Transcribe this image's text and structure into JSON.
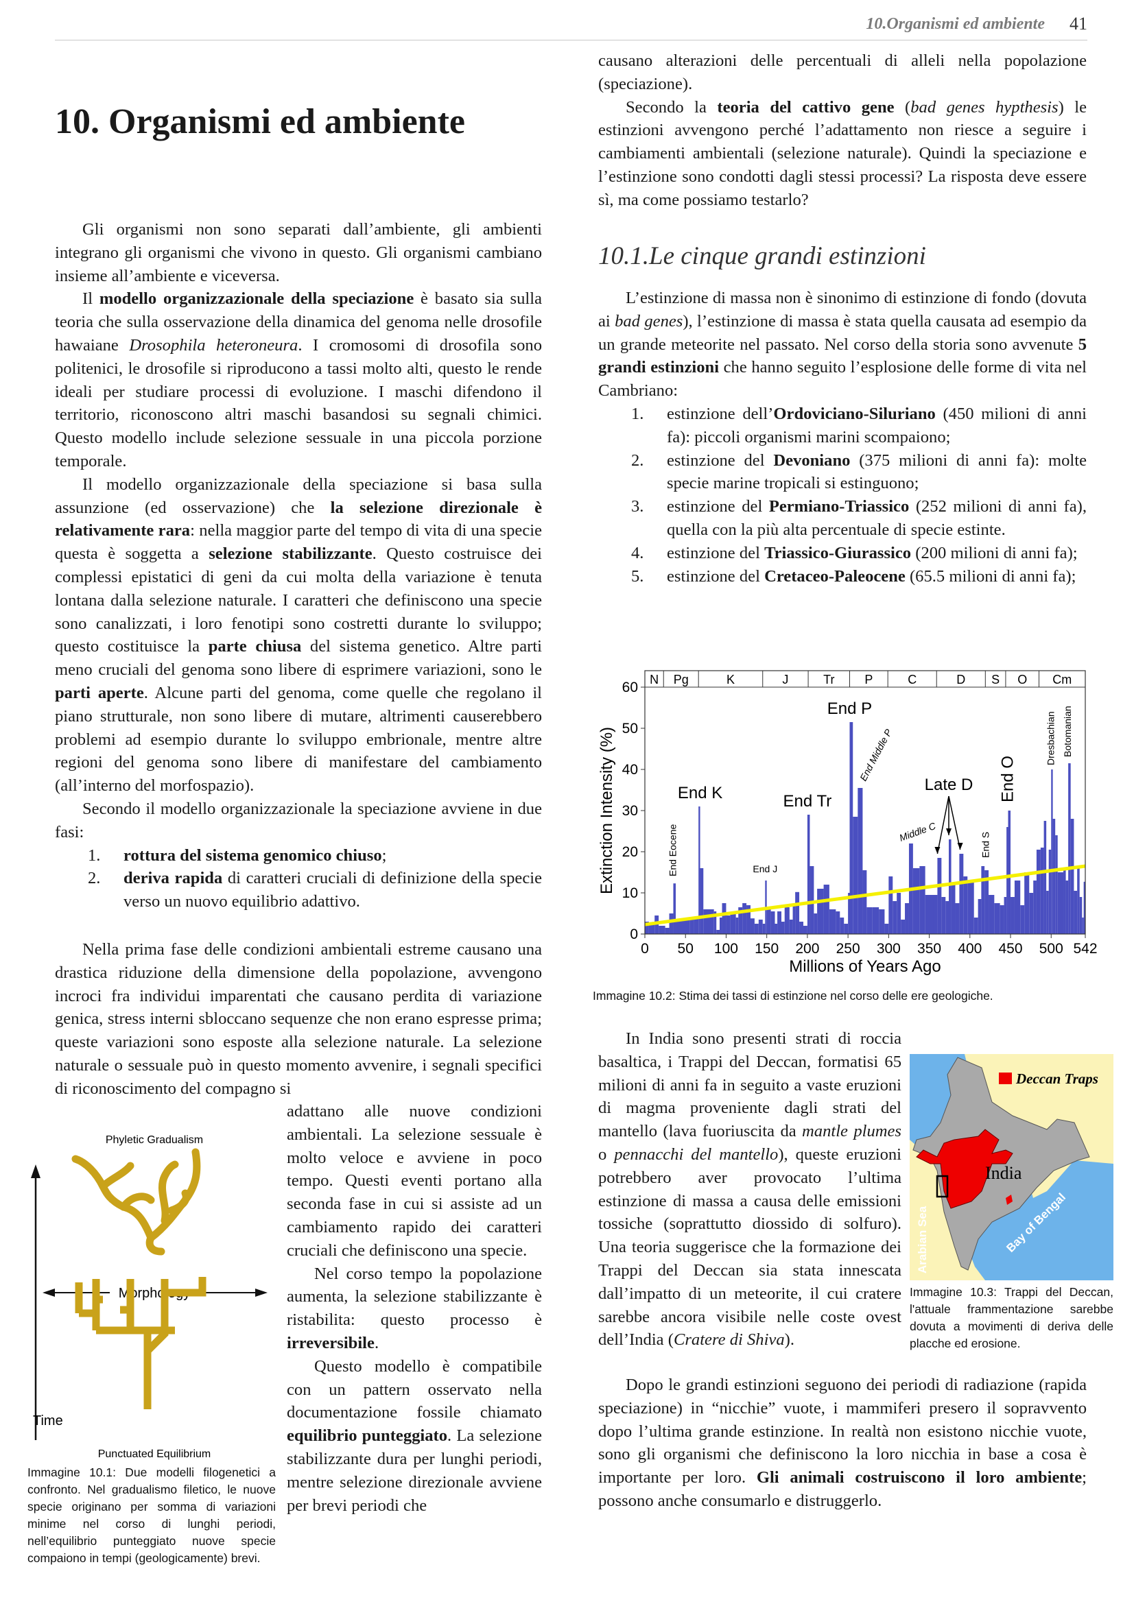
{
  "header": {
    "running_title": "10.Organismi ed ambiente",
    "page_number": "41"
  },
  "title": "10. Organismi ed ambiente",
  "left": {
    "p1": [
      "Gli organismi non sono separati dall’ambiente, gli ambienti integrano gli organismi che vivono in questo. Gli organismi cambiano insieme all’ambiente e viceversa."
    ],
    "p2": [
      "Il ",
      {
        "b": "modello organizzazionale della speciazione"
      },
      " è basato sia sulla teoria che sulla osservazione della dinamica del genoma nelle drosofile hawaiane ",
      {
        "i": "Drosophila heteroneura"
      },
      ". I cromosomi di drosofila sono politenici,  le drosofile si riproducono a tassi molto alti, questo le rende ideali per studiare processi di evoluzione. I maschi difendono il territorio, riconoscono altri maschi basandosi su segnali chimici. Questo modello include selezione sessuale in una piccola porzione temporale."
    ],
    "p3": [
      "Il modello organizzazionale della speciazione si basa sulla assunzione (ed osservazione) che ",
      {
        "b": "la selezione direzionale è relativamente rara"
      },
      ": nella maggior parte del tempo di vita di una specie questa è soggetta a ",
      {
        "b": "selezione stabilizzante"
      },
      ". Questo costruisce dei complessi epistatici di geni da cui molta della variazione è tenuta lontana dalla selezione naturale. I caratteri che definiscono una specie sono canalizzati, i loro fenotipi sono costretti durante lo sviluppo; questo costituisce la ",
      {
        "b": "parte chiusa"
      },
      " del sistema genetico. Altre parti meno cruciali del genoma sono libere di esprimere variazioni, sono le ",
      {
        "b": "parti aperte"
      },
      ". Alcune parti del genoma, come quelle che regolano il piano strutturale, non sono libere di mutare, altrimenti causerebbero problemi ad esempio durante lo sviluppo embrionale, mentre altre regioni del genoma sono libere di manifestare del cambiamento (all’interno del morfospazio)."
    ],
    "p4": [
      "Secondo il modello organizzazionale la speciazione avviene in due fasi:"
    ],
    "list": [
      {
        "num": "1.",
        "runs": [
          {
            "b": "rottura del sistema genomico chiuso"
          },
          ";"
        ]
      },
      {
        "num": "2.",
        "runs": [
          {
            "b": "deriva rapida"
          },
          " di caratteri cruciali di definizione della specie verso un nuovo equilibrio adattivo."
        ]
      }
    ],
    "p5": [
      "Nella prima fase delle condizioni ambientali estreme causano una drastica riduzione della dimensione della popolazione, avvengono incroci fra individui imparentati che causano perdita di variazione genica, stress interni sbloccano sequenze che non erano espresse prima; queste variazioni sono esposte alla selezione naturale. La selezione naturale o sessuale può in questo momento avvenire, i segnali specifici di riconoscimento del compagno si"
    ],
    "p5_cont": [
      "adattano alle nuove condizioni ambientali. La selezione sessuale è molto veloce e avviene in poco tempo. Questi eventi portano alla seconda fase in cui si assiste ad un cambiamento rapido dei caratteri cruciali che definiscono una specie."
    ],
    "p6": [
      "Nel corso tempo la popolazione aumenta, la selezione stabilizzante è ristabilita: questo processo è ",
      {
        "b": "irreversibile"
      },
      "."
    ],
    "p7": [
      "Questo modello è compatibile con un pattern osservato nella documentazione fossile chiamato ",
      {
        "b": "equilibrio punteggiato"
      },
      ". La selezione stabilizzante dura per lunghi periodi, mentre selezione direzionale avviene per brevi periodi che"
    ]
  },
  "figure1": {
    "top_label": "Phyletic Gradualism",
    "axis_h": "Morphology",
    "axis_v": "Time",
    "bottom_label": "Punctuated Equilibrium",
    "tree_color": "#c9a21a",
    "caption": "Immagine 10.1: Due modelli filogenetici a confronto. Nel gradualismo filetico, le nuove specie originano per somma di variazioni minime nel corso di lunghi periodi, nell’equilibrio punteggiato nuove specie compaiono in tempi (geologicamente) brevi."
  },
  "right": {
    "p1": [
      "causano alterazioni delle percentuali di alleli nella popolazione (speciazione)."
    ],
    "p2": [
      "Secondo la ",
      {
        "b": "teoria del cattivo gene"
      },
      " (",
      {
        "i": "bad genes hypthesis"
      },
      ") le estinzioni avvengono perché l’adattamento non riesce a seguire i cambiamenti ambientali (selezione naturale). Quindi la speciazione e l’estinzione sono condotti dagli stessi processi? La risposta deve essere sì, ma come possiamo testarlo?"
    ],
    "heading": "10.1.Le cinque grandi estinzioni",
    "p3": [
      "L’estinzione di massa non è sinonimo di estinzione di fondo (dovuta ai ",
      {
        "i": "bad genes"
      },
      "), l’estinzione di massa è stata quella causata ad esempio da un grande meteorite nel passato. Nel corso della storia sono avvenute ",
      {
        "b": "5 grandi estinzioni"
      },
      " che hanno seguito l’esplosione delle forme di vita nel Cambriano:"
    ],
    "list": [
      {
        "num": "1.",
        "runs": [
          "estinzione dell’",
          {
            "b": "Ordoviciano-Siluriano"
          },
          " (450 milioni di anni fa): piccoli organismi marini scompaiono;"
        ]
      },
      {
        "num": "2.",
        "runs": [
          "estinzione del ",
          {
            "b": "Devoniano"
          },
          " (375 milioni di anni fa): molte specie marine tropicali si estinguono;"
        ]
      },
      {
        "num": "3.",
        "runs": [
          "estinzione del ",
          {
            "b": "Permiano-Triassico"
          },
          " (252 milioni di anni fa), quella con la più alta percentuale di specie estinte."
        ]
      },
      {
        "num": "4.",
        "runs": [
          "estinzione del ",
          {
            "b": "Triassico-Giurassico"
          },
          " (200 milioni di anni fa);"
        ]
      },
      {
        "num": "5.",
        "runs": [
          "estinzione del ",
          {
            "b": "Cretaceo-Paleocene"
          },
          " (65.5 milioni di anni fa);"
        ]
      }
    ],
    "p4": [
      "In India sono presenti strati di roccia basaltica, i Trappi del Deccan, formatisi 65 milioni di anni fa in seguito a  vaste eruzioni di magma proveniente dagli strati del mantello (lava fuoriuscita da ",
      {
        "i": "mantle plumes"
      },
      " o ",
      {
        "i": "pennacchi del mantello"
      },
      "), queste eruzioni potrebbero aver provocato l’ultima estinzione di massa a causa delle emissioni tossiche (soprattutto diossido di solfuro). Una teoria suggerisce che la formazione dei Trappi del Deccan sia stata innescata dall’impatto di un meteorite, il cui cratere sarebbe ancora visibile nelle coste ovest dell’India (",
      {
        "i": "Cratere di Shiva"
      },
      ")."
    ],
    "p5": [
      "Dopo le grandi estinzioni seguono dei periodi di radiazione (rapida speciazione) in “nicchie” vuote, i mammiferi presero il sopravvento dopo l’ultima grande estinzione. In realtà non esistono nicchie vuote, sono gli organismi che definiscono la loro nicchia in base a cosa è importante per loro. ",
      {
        "b": "Gli animali costruiscono il loro ambiente"
      },
      "; possono anche consumarlo e distruggerlo."
    ]
  },
  "figure2": {
    "caption": "Immagine 10.2: Stima dei tassi di estinzione nel corso delle ere geologiche."
  },
  "figure3": {
    "legend": "Deccan Traps",
    "country": "India",
    "sea_west": "Arabian Sea",
    "sea_east": "Bay of Bengal",
    "colors": {
      "land": "#a9a9a9",
      "sea": "#6db3ea",
      "traps": "#ee0000",
      "background": "#fbf3b8"
    },
    "caption": "Immagine 10.3: Trappi del Deccan, l'attuale frammentazione sarebbe dovuta a movimenti di deriva delle placche ed erosione."
  },
  "chart_data": {
    "type": "bar",
    "xlabel": "Millions of Years Ago",
    "ylabel": "Extinction Intensity (%)",
    "xlim": [
      0,
      542
    ],
    "ylim": [
      0,
      60
    ],
    "xticks": [
      "0",
      "50",
      "100",
      "150",
      "200",
      "250",
      "300",
      "350",
      "400",
      "450",
      "500",
      "542"
    ],
    "yticks": [
      "0",
      "10",
      "20",
      "30",
      "40",
      "50",
      "60"
    ],
    "bar_color": "#4a4fc0",
    "trend_color": "#f5f000",
    "trend": [
      [
        0,
        2.3
      ],
      [
        542,
        16.5
      ]
    ],
    "periods": [
      {
        "label": "N",
        "from": 0,
        "to": 23
      },
      {
        "label": "Pg",
        "from": 23,
        "to": 66
      },
      {
        "label": "K",
        "from": 66,
        "to": 145
      },
      {
        "label": "J",
        "from": 145,
        "to": 201
      },
      {
        "label": "Tr",
        "from": 201,
        "to": 252
      },
      {
        "label": "P",
        "from": 252,
        "to": 299
      },
      {
        "label": "C",
        "from": 299,
        "to": 359
      },
      {
        "label": "D",
        "from": 359,
        "to": 419
      },
      {
        "label": "S",
        "from": 419,
        "to": 444
      },
      {
        "label": "O",
        "from": 444,
        "to": 485
      },
      {
        "label": "Cm",
        "from": 485,
        "to": 542
      }
    ],
    "series": [
      [
        0,
        3
      ],
      [
        5,
        2.5
      ],
      [
        12,
        4.5
      ],
      [
        17,
        2
      ],
      [
        25,
        1.5
      ],
      [
        30,
        5
      ],
      [
        35,
        12.3
      ],
      [
        38,
        3.5
      ],
      [
        55,
        3.5
      ],
      [
        60,
        4
      ],
      [
        66,
        31
      ],
      [
        68,
        16
      ],
      [
        72,
        6
      ],
      [
        85,
        5.5
      ],
      [
        88,
        1
      ],
      [
        92,
        4
      ],
      [
        95,
        7.5
      ],
      [
        100,
        4.5
      ],
      [
        105,
        5
      ],
      [
        112,
        4
      ],
      [
        115,
        6.5
      ],
      [
        120,
        7.5
      ],
      [
        125,
        7
      ],
      [
        130,
        3.8
      ],
      [
        135,
        2.5
      ],
      [
        140,
        3.5
      ],
      [
        145,
        2.5
      ],
      [
        148,
        13
      ],
      [
        150,
        6
      ],
      [
        155,
        5.5
      ],
      [
        160,
        2.5
      ],
      [
        163,
        5.5
      ],
      [
        168,
        3
      ],
      [
        172,
        6.5
      ],
      [
        178,
        3.5
      ],
      [
        182,
        7
      ],
      [
        185,
        10.2
      ],
      [
        190,
        3
      ],
      [
        195,
        2
      ],
      [
        200,
        29
      ],
      [
        203,
        16.5
      ],
      [
        208,
        5
      ],
      [
        212,
        11
      ],
      [
        220,
        12
      ],
      [
        227,
        6
      ],
      [
        235,
        5.5
      ],
      [
        240,
        4
      ],
      [
        245,
        2.5
      ],
      [
        250,
        10
      ],
      [
        252,
        51.5
      ],
      [
        256,
        28.5
      ],
      [
        262,
        35.5
      ],
      [
        268,
        15.5
      ],
      [
        273,
        6.5
      ],
      [
        280,
        6.5
      ],
      [
        288,
        6
      ],
      [
        295,
        2.5
      ],
      [
        300,
        14
      ],
      [
        305,
        8
      ],
      [
        310,
        10
      ],
      [
        315,
        3.5
      ],
      [
        320,
        7.5
      ],
      [
        325,
        22
      ],
      [
        330,
        16
      ],
      [
        338,
        16.5
      ],
      [
        345,
        9.5
      ],
      [
        355,
        9.5
      ],
      [
        360,
        18.5
      ],
      [
        365,
        9
      ],
      [
        370,
        8
      ],
      [
        374,
        23
      ],
      [
        377,
        12.5
      ],
      [
        382,
        7.5
      ],
      [
        387,
        19.5
      ],
      [
        392,
        14
      ],
      [
        397,
        12.5
      ],
      [
        405,
        4
      ],
      [
        410,
        8.5
      ],
      [
        414,
        16.5
      ],
      [
        418,
        15.5
      ],
      [
        423,
        9.5
      ],
      [
        430,
        7.5
      ],
      [
        437,
        7
      ],
      [
        442,
        9
      ],
      [
        445,
        26
      ],
      [
        447,
        30
      ],
      [
        450,
        9
      ],
      [
        455,
        13
      ],
      [
        462,
        7
      ],
      [
        467,
        15
      ],
      [
        473,
        10
      ],
      [
        478,
        13
      ],
      [
        482,
        20.5
      ],
      [
        487,
        21
      ],
      [
        491,
        27.5
      ],
      [
        494,
        10.5
      ],
      [
        497,
        20.5
      ],
      [
        500,
        40
      ],
      [
        502,
        28
      ],
      [
        505,
        24
      ],
      [
        508,
        15
      ],
      [
        515,
        16
      ],
      [
        518,
        13
      ],
      [
        521,
        41.5
      ],
      [
        524,
        28
      ],
      [
        528,
        10.5
      ],
      [
        532,
        16
      ],
      [
        535,
        9
      ],
      [
        538,
        4
      ],
      [
        540,
        12.7
      ]
    ],
    "annotations": [
      {
        "text": "End Eocene",
        "x": 35,
        "y": 14,
        "style": "vertical"
      },
      {
        "text": "End K",
        "x": 68,
        "y": 33,
        "style": "large"
      },
      {
        "text": "End J",
        "x": 148,
        "y": 15,
        "style": "small"
      },
      {
        "text": "End Tr",
        "x": 200,
        "y": 31,
        "style": "large"
      },
      {
        "text": "End P",
        "x": 252,
        "y": 53.5,
        "style": "large"
      },
      {
        "text": "End Middle P",
        "x": 268,
        "y": 37,
        "style": "diagonal"
      },
      {
        "text": "Middle C",
        "x": 315,
        "y": 22.5,
        "style": "tilted"
      },
      {
        "text": "Late D",
        "x": 374,
        "y": 35,
        "style": "large"
      },
      {
        "text": "End S",
        "x": 420,
        "y": 18.5,
        "style": "vertical"
      },
      {
        "text": "End O",
        "x": 446,
        "y": 32,
        "style": "vertical-large"
      },
      {
        "text": "Dresbachian",
        "x": 500,
        "y": 41,
        "style": "vertical"
      },
      {
        "text": "Botomanian",
        "x": 521,
        "y": 43,
        "style": "vertical"
      }
    ]
  }
}
